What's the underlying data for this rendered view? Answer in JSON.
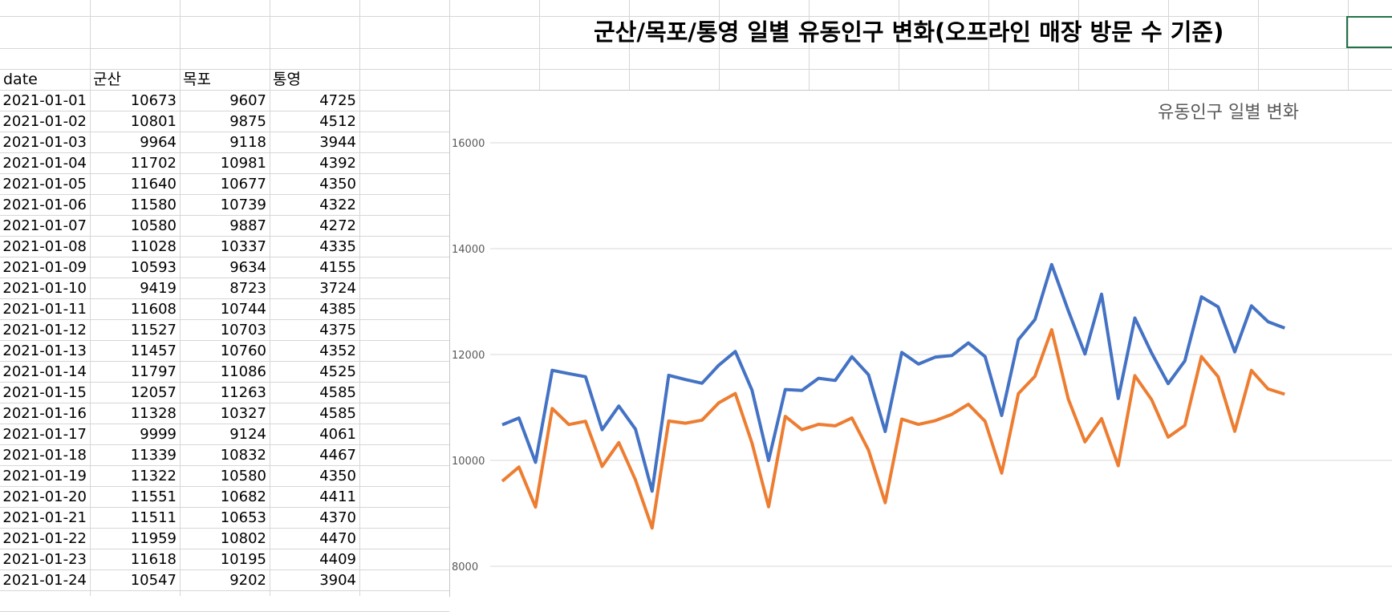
{
  "sheet": {
    "title": "군산/목포/통영 일별 유동인구 변화(오프라인 매장 방문 수 기준)",
    "headers": [
      "date",
      "군산",
      "목포",
      "통영"
    ],
    "rows": [
      [
        "2021-01-01",
        "10673",
        "9607",
        "4725"
      ],
      [
        "2021-01-02",
        "10801",
        "9875",
        "4512"
      ],
      [
        "2021-01-03",
        "9964",
        "9118",
        "3944"
      ],
      [
        "2021-01-04",
        "11702",
        "10981",
        "4392"
      ],
      [
        "2021-01-05",
        "11640",
        "10677",
        "4350"
      ],
      [
        "2021-01-06",
        "11580",
        "10739",
        "4322"
      ],
      [
        "2021-01-07",
        "10580",
        "9887",
        "4272"
      ],
      [
        "2021-01-08",
        "11028",
        "10337",
        "4335"
      ],
      [
        "2021-01-09",
        "10593",
        "9634",
        "4155"
      ],
      [
        "2021-01-10",
        "9419",
        "8723",
        "3724"
      ],
      [
        "2021-01-11",
        "11608",
        "10744",
        "4385"
      ],
      [
        "2021-01-12",
        "11527",
        "10703",
        "4375"
      ],
      [
        "2021-01-13",
        "11457",
        "10760",
        "4352"
      ],
      [
        "2021-01-14",
        "11797",
        "11086",
        "4525"
      ],
      [
        "2021-01-15",
        "12057",
        "11263",
        "4585"
      ],
      [
        "2021-01-16",
        "11328",
        "10327",
        "4585"
      ],
      [
        "2021-01-17",
        "9999",
        "9124",
        "4061"
      ],
      [
        "2021-01-18",
        "11339",
        "10832",
        "4467"
      ],
      [
        "2021-01-19",
        "11322",
        "10580",
        "4350"
      ],
      [
        "2021-01-20",
        "11551",
        "10682",
        "4411"
      ],
      [
        "2021-01-21",
        "11511",
        "10653",
        "4370"
      ],
      [
        "2021-01-22",
        "11959",
        "10802",
        "4470"
      ],
      [
        "2021-01-23",
        "11618",
        "10195",
        "4409"
      ],
      [
        "2021-01-24",
        "10547",
        "9202",
        "3904"
      ]
    ]
  },
  "colors": {
    "series_1": "#4472C4",
    "series_2": "#ED7D31",
    "gridline": "#d9d9d9",
    "selection": "#217346"
  },
  "chart_data": {
    "type": "line",
    "title": "유동인구 일별 변화",
    "xlabel": "",
    "ylabel": "",
    "ylim": [
      8000,
      16000
    ],
    "yticks": [
      "16000",
      "14000",
      "12000",
      "10000",
      "8000"
    ],
    "grid": true,
    "series": [
      {
        "values": [
          10673,
          10801,
          9964,
          11702,
          11640,
          11580,
          10580,
          11028,
          10593,
          9419,
          11608,
          11527,
          11457,
          11797,
          12057,
          11328,
          9999,
          11339,
          11322,
          11551,
          11511,
          11959,
          11618,
          10547,
          12040,
          11820,
          11950,
          11980,
          12220,
          11960,
          10850,
          12280,
          12660,
          13700,
          12830,
          12010,
          13140,
          11170,
          12690,
          12030,
          11450,
          11880,
          13090,
          12900,
          12050,
          12920,
          12620,
          12500
        ]
      },
      {
        "values": [
          9607,
          9875,
          9118,
          10981,
          10677,
          10739,
          9887,
          10337,
          9634,
          8723,
          10744,
          10703,
          10760,
          11086,
          11263,
          10327,
          9124,
          10832,
          10580,
          10682,
          10653,
          10802,
          10195,
          9202,
          10780,
          10680,
          10750,
          10870,
          11060,
          10740,
          9760,
          11260,
          11590,
          12470,
          11160,
          10350,
          10790,
          9900,
          11600,
          11150,
          10440,
          10660,
          11960,
          11580,
          10550,
          11700,
          11350,
          11250
        ]
      }
    ]
  }
}
